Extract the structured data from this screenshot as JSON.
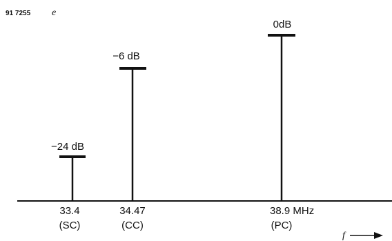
{
  "figure": {
    "id_number": "91 7255",
    "id_letter": "e"
  },
  "axis": {
    "variable": "f"
  },
  "carriers": [
    {
      "level": "−24 dB",
      "frequency": "33.4",
      "name": "(SC)"
    },
    {
      "level": "−6 dB",
      "frequency": "34.47",
      "name": "(CC)"
    },
    {
      "level": "0dB",
      "frequency": "38.9 MHz",
      "name": "(PC)"
    }
  ],
  "colors": {
    "ink": "#111111",
    "background": "#ffffff"
  }
}
